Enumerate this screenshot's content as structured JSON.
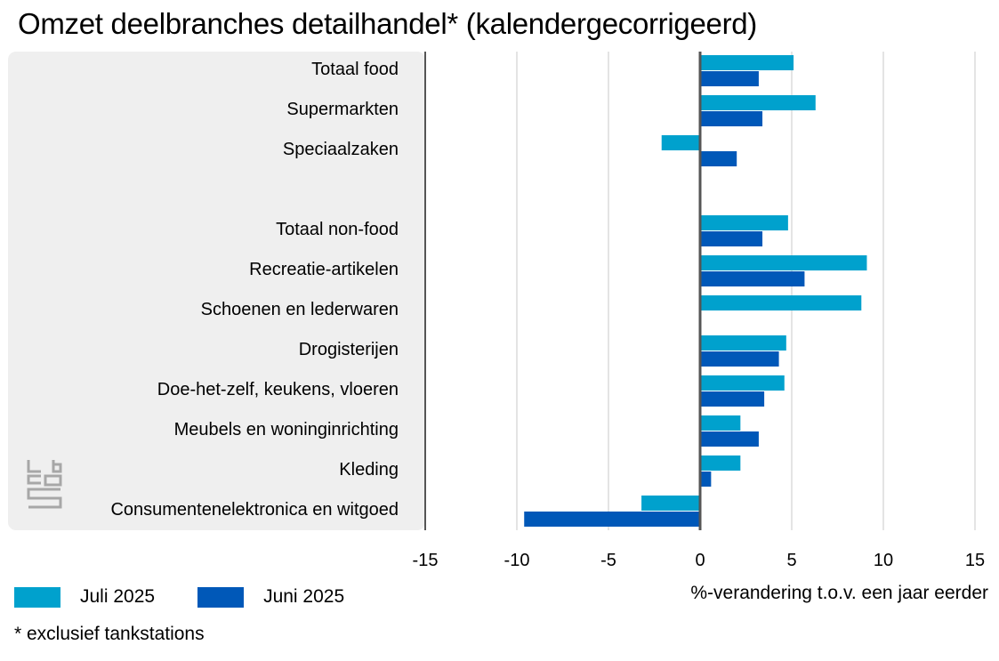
{
  "title": "Omzet deelbranches detailhandel* (kalendergecorrigeerd)",
  "footnote": "* exclusief tankstations",
  "logo": {
    "icon": "cbs-logo-icon",
    "color": "#a7a7a7"
  },
  "colors": {
    "juli": "#00a1cd",
    "juni": "#0058b8",
    "panel": "#efefef",
    "grid": "#c8c8c8",
    "axis": "#555555"
  },
  "chart_data": {
    "type": "bar",
    "orientation": "horizontal",
    "xlabel": "%-verandering t.o.v. een jaar eerder",
    "xlim": [
      -15,
      15
    ],
    "xticks": [
      "-15",
      "-10",
      "-5",
      "0",
      "5",
      "10",
      "15"
    ],
    "xtick_values": [
      -15,
      -10,
      -5,
      0,
      5,
      10,
      15
    ],
    "grid": true,
    "legend": "bottom-left",
    "categories": [
      "Totaal food",
      "Supermarkten",
      "Speciaalzaken",
      "",
      "Totaal non-food",
      "Recreatie-artikelen",
      "Schoenen en lederwaren",
      "Drogisterijen",
      "Doe-het-zelf, keukens, vloeren",
      "Meubels en woninginrichting",
      "Kleding",
      "Consumentenelektronica en witgoed"
    ],
    "series": [
      {
        "name": "Juli 2025",
        "color": "#00a1cd",
        "values": [
          5.1,
          6.3,
          -2.1,
          null,
          4.8,
          9.1,
          8.8,
          4.7,
          4.6,
          2.2,
          2.2,
          -3.2
        ]
      },
      {
        "name": "Juni 2025",
        "color": "#0058b8",
        "values": [
          3.2,
          3.4,
          2.0,
          null,
          3.4,
          5.7,
          null,
          4.3,
          3.5,
          3.2,
          0.6,
          -9.6
        ]
      }
    ]
  }
}
